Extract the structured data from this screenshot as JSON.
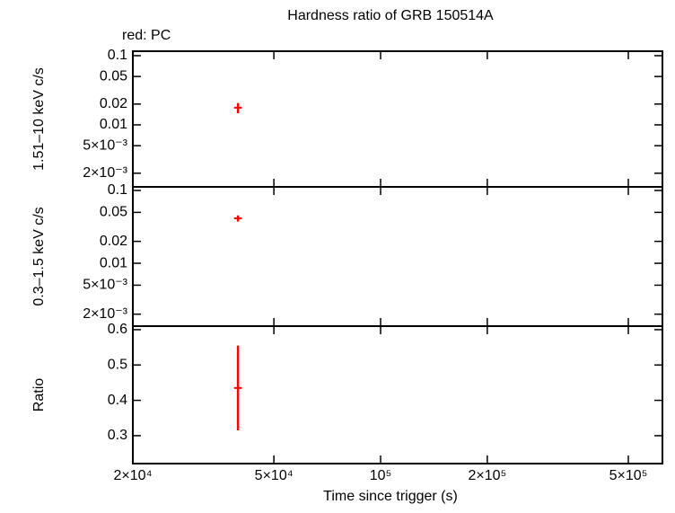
{
  "chart_data": [
    {
      "type": "errorbar",
      "title": "Hardness ratio of GRB 150514A",
      "annotation": "red: PC",
      "ylabel": "1.51–10 keV c/s",
      "log_y": true,
      "ylim": [
        0.00127,
        0.116
      ],
      "yticks": [
        0.1,
        0.05,
        0.02,
        0.01,
        {
          "value": 0.005,
          "label": "5×10⁻³"
        },
        {
          "value": 0.002,
          "label": "2×10⁻³"
        }
      ],
      "series": [
        {
          "name": "PC",
          "color": "#ff0000",
          "x": [
            39600
          ],
          "x_err": [
            1000
          ],
          "values": [
            0.0177
          ],
          "y_err": [
            0.003
          ]
        }
      ]
    },
    {
      "type": "errorbar",
      "ylabel": "0.3–1.5 keV c/s",
      "log_y": true,
      "ylim": [
        0.00137,
        0.112
      ],
      "yticks": [
        0.1,
        0.05,
        0.02,
        0.01,
        {
          "value": 0.005,
          "label": "5×10⁻³"
        },
        {
          "value": 0.002,
          "label": "2×10⁻³"
        }
      ],
      "series": [
        {
          "name": "PC",
          "color": "#ff0000",
          "x": [
            39600
          ],
          "x_err": [
            1000
          ],
          "values": [
            0.0414
          ],
          "y_err": [
            0.004
          ]
        }
      ]
    },
    {
      "type": "errorbar",
      "ylabel": "Ratio",
      "log_y": false,
      "xlabel": "Time since trigger (s)",
      "log_x": true,
      "xlim": [
        20000,
        624000
      ],
      "xticks": [
        {
          "value": 20000,
          "label": "2×10⁴"
        },
        {
          "value": 50000,
          "label": "5×10⁴"
        },
        {
          "value": 100000,
          "label": "10⁵"
        },
        {
          "value": 200000,
          "label": "2×10⁵"
        },
        {
          "value": 500000,
          "label": "5×10⁵"
        }
      ],
      "ylim": [
        0.221,
        0.61
      ],
      "yticks": [
        0.3,
        0.4,
        0.5,
        0.6
      ],
      "series": [
        {
          "name": "PC",
          "color": "#ff0000",
          "x": [
            39600
          ],
          "x_err": [
            1000
          ],
          "values": [
            0.435
          ],
          "y_err": [
            0.12
          ]
        }
      ]
    }
  ]
}
